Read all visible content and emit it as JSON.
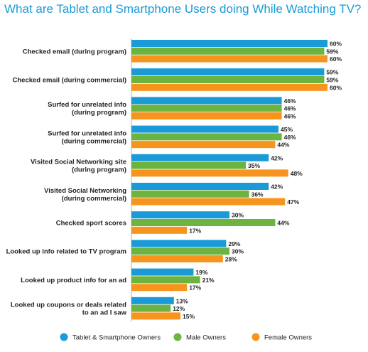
{
  "chart_data": {
    "type": "bar",
    "orientation": "horizontal",
    "title": "What are Tablet and Smartphone Users doing While Watching TV?",
    "categories": [
      [
        "Checked email (during program)"
      ],
      [
        "Checked email (during commercial)"
      ],
      [
        "Surfed for unrelated info",
        "(during program)"
      ],
      [
        "Surfed for unrelated info",
        "(during commercial)"
      ],
      [
        "Visited Social Networking site",
        "(during program)"
      ],
      [
        "Visited Social Networking",
        "(during commercial)"
      ],
      [
        "Checked sport scores"
      ],
      [
        "Looked up info related to TV program"
      ],
      [
        "Looked up product info for an ad"
      ],
      [
        "Looked up coupons or deals related",
        "to an ad I saw"
      ]
    ],
    "series": [
      {
        "name": "Tablet & Smartphone Owners",
        "color": "#1a9ad6",
        "values": [
          60,
          59,
          46,
          45,
          42,
          42,
          30,
          29,
          19,
          13
        ]
      },
      {
        "name": "Male Owners",
        "color": "#6db33f",
        "values": [
          59,
          59,
          46,
          46,
          35,
          36,
          44,
          30,
          21,
          12
        ]
      },
      {
        "name": "Female Owners",
        "color": "#f7941d",
        "values": [
          60,
          60,
          46,
          44,
          48,
          47,
          17,
          28,
          17,
          15
        ]
      }
    ],
    "value_suffix": "%",
    "xlim": [
      0,
      60
    ],
    "grid": false,
    "legend_position": "bottom"
  }
}
